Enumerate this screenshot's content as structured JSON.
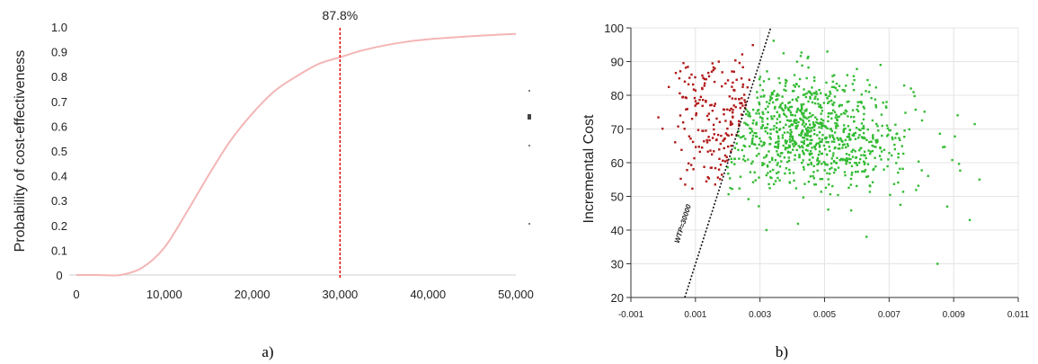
{
  "panel_labels": [
    "a)",
    "b)"
  ],
  "chart_data": [
    {
      "type": "line",
      "title": "",
      "xlabel": "",
      "ylabel": "Probability of cost-effectiveness",
      "xlim": [
        0,
        50000
      ],
      "ylim": [
        0,
        1.0
      ],
      "x_ticks": [
        "0",
        "10,000",
        "20,000",
        "30,000",
        "40,000",
        "50,000"
      ],
      "y_ticks": [
        "0",
        "0.1",
        "0.2",
        "0.3",
        "0.4",
        "0.5",
        "0.6",
        "0.7",
        "0.8",
        "0.9",
        "1.0"
      ],
      "x": [
        0,
        2500,
        5000,
        7500,
        10000,
        12500,
        15000,
        17500,
        20000,
        22500,
        25000,
        27500,
        30000,
        32500,
        35000,
        37500,
        40000,
        42500,
        45000,
        47500,
        50000
      ],
      "y": [
        0.0,
        0.0,
        0.0,
        0.03,
        0.11,
        0.25,
        0.4,
        0.54,
        0.65,
        0.74,
        0.8,
        0.85,
        0.878,
        0.905,
        0.925,
        0.94,
        0.95,
        0.957,
        0.963,
        0.968,
        0.972
      ],
      "line_color": "#f4b5b5",
      "threshold": {
        "x": 30000,
        "label": "87.8%",
        "color": "#e00000"
      },
      "grid": false
    },
    {
      "type": "scatter",
      "title": "",
      "xlabel": "",
      "ylabel": "Incremental Cost",
      "xlim": [
        -0.001,
        0.011
      ],
      "ylim": [
        20,
        100
      ],
      "x_ticks": [
        "-0.001",
        "0.001",
        "0.003",
        "0.005",
        "0.007",
        "0.009",
        "0.011"
      ],
      "y_ticks": [
        "20",
        "30",
        "40",
        "50",
        "60",
        "70",
        "80",
        "90",
        "100"
      ],
      "grid": true,
      "wtp_line": {
        "label": "WTP=30000",
        "points": [
          [
            0.00067,
            20
          ],
          [
            0.00333,
            100
          ]
        ]
      },
      "cluster": {
        "n": 1000,
        "center": [
          0.0045,
          69.5
        ],
        "spread": [
          0.0016,
          8.5
        ],
        "outliers": [
          [
            0.0085,
            30
          ],
          [
            0.0032,
            40
          ],
          [
            0.0005,
            85
          ],
          [
            0.0063,
            38
          ],
          [
            0.0098,
            55
          ],
          [
            0.0095,
            43
          ],
          [
            0.0088,
            47
          ]
        ]
      },
      "colors": {
        "cost_effective": "#33bb33",
        "not_cost_effective": "#b01818"
      }
    }
  ]
}
